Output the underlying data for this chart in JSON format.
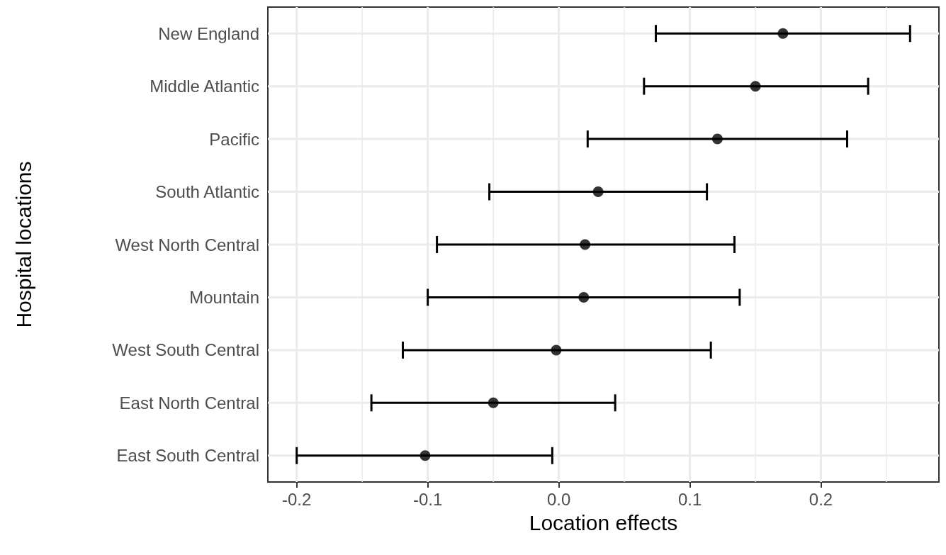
{
  "chart_data": {
    "type": "scatter",
    "xlabel": "Location effects",
    "ylabel": "Hospital locations",
    "categories": [
      "New England",
      "Middle Atlantic",
      "Pacific",
      "South Atlantic",
      "West North Central",
      "Mountain",
      "West South Central",
      "East North Central",
      "East South Central"
    ],
    "values": [
      0.171,
      0.15,
      0.121,
      0.03,
      0.02,
      0.019,
      -0.002,
      -0.05,
      -0.102
    ],
    "errors": [
      [
        0.074,
        0.268
      ],
      [
        0.065,
        0.236
      ],
      [
        0.022,
        0.22
      ],
      [
        -0.053,
        0.113
      ],
      [
        -0.093,
        0.134
      ],
      [
        -0.1,
        0.138
      ],
      [
        -0.119,
        0.116
      ],
      [
        -0.143,
        0.043
      ],
      [
        -0.2,
        -0.005
      ]
    ],
    "orientation": "horizontal",
    "color": "#000000",
    "marker": "circle",
    "xlim": [
      -0.222,
      0.29
    ],
    "xticks": [
      {
        "value": -0.2,
        "label": "-0.2"
      },
      {
        "value": -0.1,
        "label": "-0.1"
      },
      {
        "value": 0,
        "label": "0.0"
      },
      {
        "value": 0.1,
        "label": "0.1"
      },
      {
        "value": 0.2,
        "label": "0.2"
      }
    ],
    "grid": true
  }
}
